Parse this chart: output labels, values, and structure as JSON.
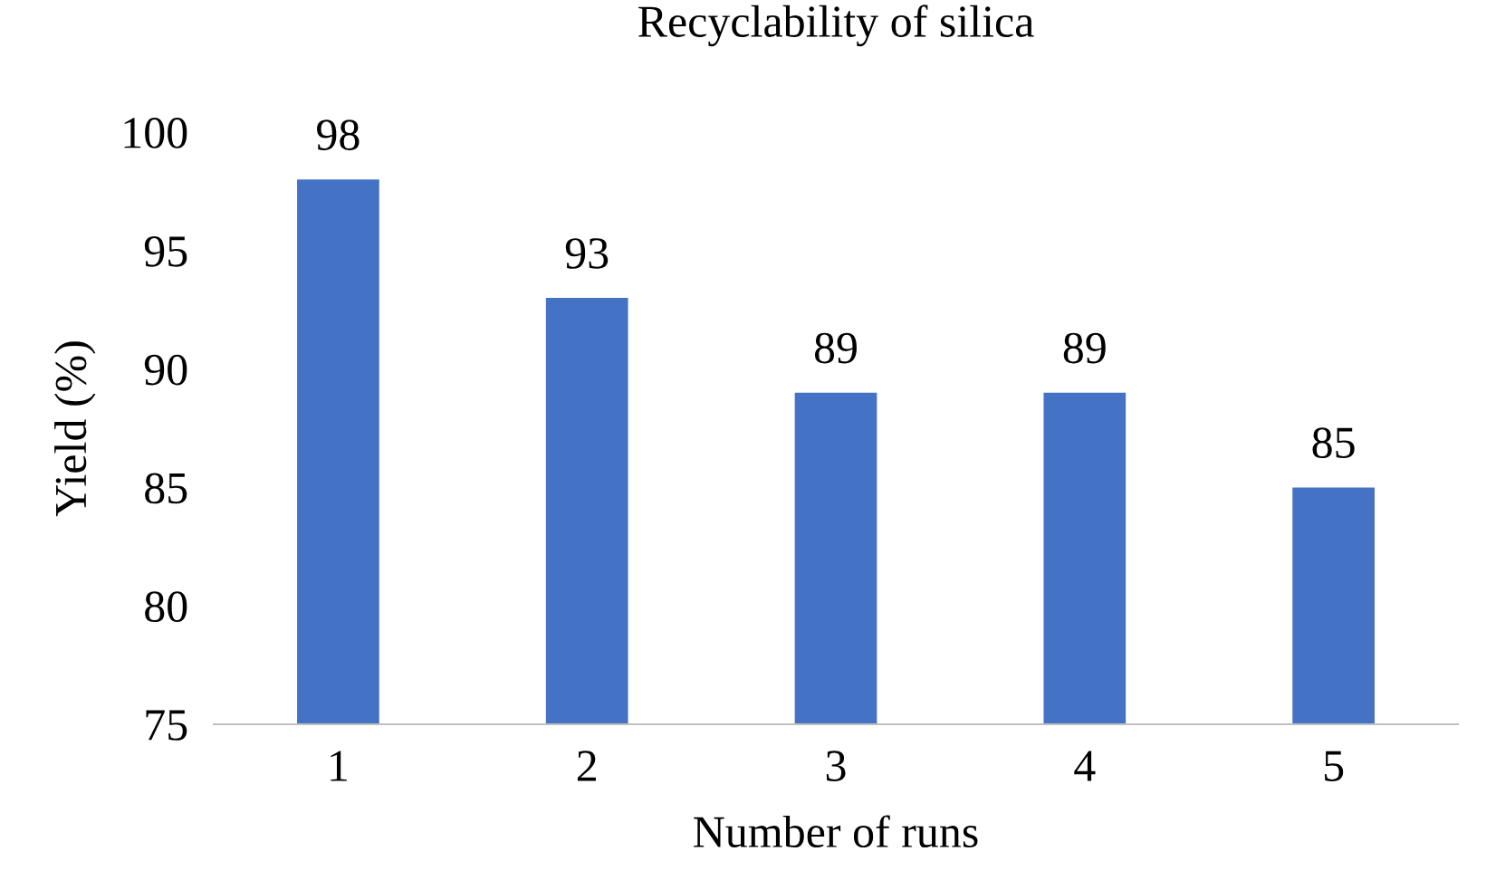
{
  "chart_data": {
    "type": "bar",
    "title": "Recyclability of silica",
    "xlabel": "Number of runs",
    "ylabel": "Yield (%)",
    "categories": [
      "1",
      "2",
      "3",
      "4",
      "5"
    ],
    "values": [
      98,
      93,
      89,
      89,
      85
    ],
    "color": "#4472c4",
    "ylim": [
      75,
      100
    ],
    "yticks": [
      75,
      80,
      85,
      90,
      95,
      100
    ],
    "data_labels": true,
    "grid": false,
    "legend": false
  }
}
